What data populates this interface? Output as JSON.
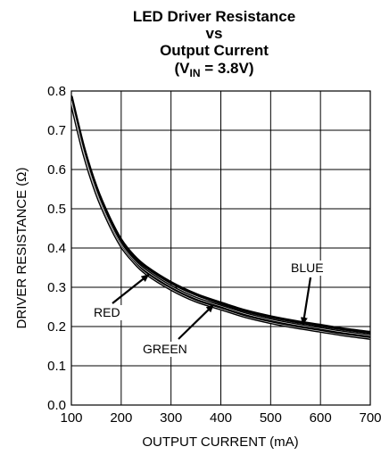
{
  "chart_data": {
    "type": "line",
    "title_lines": [
      "LED Driver Resistance",
      "vs",
      "Output Current"
    ],
    "title_condition": {
      "prefix": "(V",
      "subscript": "IN",
      "suffix": " = 3.8V)"
    },
    "xlabel": "OUTPUT CURRENT (mA)",
    "ylabel": "DRIVER RESISTANCE (Ω)",
    "xlim": [
      100,
      700
    ],
    "ylim": [
      0.0,
      0.8
    ],
    "x_ticks": [
      "100",
      "200",
      "300",
      "400",
      "500",
      "600",
      "700"
    ],
    "y_ticks": [
      "0.0",
      "0.1",
      "0.2",
      "0.3",
      "0.4",
      "0.5",
      "0.6",
      "0.7",
      "0.8"
    ],
    "grid": true,
    "series": [
      {
        "name": "RED",
        "x": [
          100,
          125,
          150,
          175,
          200,
          225,
          250,
          300,
          350,
          400,
          450,
          500,
          550,
          600,
          650,
          700
        ],
        "y": [
          0.77,
          0.64,
          0.54,
          0.465,
          0.405,
          0.365,
          0.335,
          0.295,
          0.265,
          0.245,
          0.225,
          0.21,
          0.198,
          0.188,
          0.178,
          0.17
        ]
      },
      {
        "name": "GREEN",
        "x": [
          100,
          125,
          150,
          175,
          200,
          225,
          250,
          300,
          350,
          400,
          450,
          500,
          550,
          600,
          650,
          700
        ],
        "y": [
          0.775,
          0.645,
          0.545,
          0.47,
          0.41,
          0.37,
          0.342,
          0.302,
          0.272,
          0.252,
          0.232,
          0.217,
          0.205,
          0.195,
          0.185,
          0.177
        ]
      },
      {
        "name": "BLUE",
        "x": [
          100,
          125,
          150,
          175,
          200,
          225,
          250,
          300,
          350,
          400,
          450,
          500,
          550,
          600,
          650,
          700
        ],
        "y": [
          0.785,
          0.655,
          0.555,
          0.48,
          0.42,
          0.38,
          0.352,
          0.312,
          0.282,
          0.26,
          0.24,
          0.225,
          0.213,
          0.203,
          0.193,
          0.185
        ]
      }
    ],
    "annotations": [
      {
        "text": "RED",
        "series": "RED",
        "arrow_to_x": 255,
        "arrow_to_y": 0.332
      },
      {
        "text": "GREEN",
        "series": "GREEN",
        "arrow_to_x": 385,
        "arrow_to_y": 0.255
      },
      {
        "text": "BLUE",
        "series": "BLUE",
        "arrow_to_x": 565,
        "arrow_to_y": 0.205
      }
    ],
    "colors": {
      "line": "#000000",
      "grid": "#000000",
      "background": "#ffffff"
    }
  }
}
